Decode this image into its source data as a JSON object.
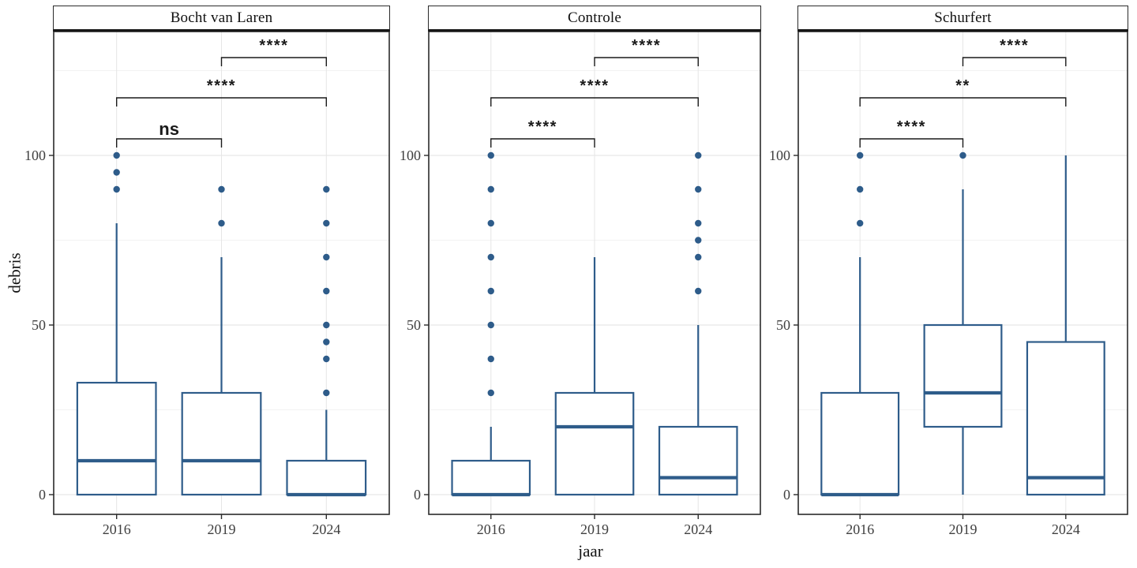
{
  "style": {
    "background": "#ffffff",
    "box_stroke": "#2e5c8a",
    "box_fill": "#ffffff",
    "outlier": "#2e5c8a",
    "grid_major": "#e6e6e6",
    "grid_minor": "#f2f2f2",
    "panel_border": "#2b2b2b",
    "axis_text": "#404040",
    "title_text": "#111111",
    "sig_color": "#1a1a1a"
  },
  "chart_data": {
    "type": "boxplot",
    "faceted": true,
    "title": "",
    "xlabel": "jaar",
    "ylabel": "debris",
    "categories": [
      "2016",
      "2019",
      "2024"
    ],
    "y_ticks": [
      0,
      50,
      100
    ],
    "y_minor_ticks": [
      25,
      75,
      125
    ],
    "ylim": [
      -6,
      136
    ],
    "grid": "major+minor",
    "legend": "none",
    "panels": [
      {
        "title": "Bocht van Laren",
        "boxes": [
          {
            "year": "2016",
            "q1": 0,
            "median": 10,
            "q3": 33,
            "whisker_low": 0,
            "whisker_high": 80,
            "outliers": [
              90,
              95,
              100
            ]
          },
          {
            "year": "2019",
            "q1": 0,
            "median": 10,
            "q3": 30,
            "whisker_low": 0,
            "whisker_high": 70,
            "outliers": [
              80,
              90
            ]
          },
          {
            "year": "2024",
            "q1": 0,
            "median": 0,
            "q3": 10,
            "whisker_low": 0,
            "whisker_high": 25,
            "outliers": [
              30,
              40,
              45,
              50,
              60,
              70,
              80,
              90
            ]
          }
        ],
        "comparisons": [
          {
            "from": "2016",
            "to": "2019",
            "label": "ns",
            "tier": 1
          },
          {
            "from": "2016",
            "to": "2024",
            "label": "****",
            "tier": 2
          },
          {
            "from": "2019",
            "to": "2024",
            "label": "****",
            "tier": 3
          }
        ]
      },
      {
        "title": "Controle",
        "boxes": [
          {
            "year": "2016",
            "q1": 0,
            "median": 0,
            "q3": 10,
            "whisker_low": 0,
            "whisker_high": 20,
            "outliers": [
              30,
              40,
              50,
              60,
              70,
              80,
              90,
              100
            ]
          },
          {
            "year": "2019",
            "q1": 0,
            "median": 20,
            "q3": 30,
            "whisker_low": 0,
            "whisker_high": 70,
            "outliers": []
          },
          {
            "year": "2024",
            "q1": 0,
            "median": 5,
            "q3": 20,
            "whisker_low": 0,
            "whisker_high": 50,
            "outliers": [
              60,
              70,
              75,
              80,
              90,
              100
            ]
          }
        ],
        "comparisons": [
          {
            "from": "2016",
            "to": "2019",
            "label": "****",
            "tier": 1
          },
          {
            "from": "2016",
            "to": "2024",
            "label": "****",
            "tier": 2
          },
          {
            "from": "2019",
            "to": "2024",
            "label": "****",
            "tier": 3
          }
        ]
      },
      {
        "title": "Schurfert",
        "boxes": [
          {
            "year": "2016",
            "q1": 0,
            "median": 0,
            "q3": 30,
            "whisker_low": 0,
            "whisker_high": 70,
            "outliers": [
              80,
              90,
              100
            ]
          },
          {
            "year": "2019",
            "q1": 20,
            "median": 30,
            "q3": 50,
            "whisker_low": 0,
            "whisker_high": 90,
            "outliers": [
              100
            ]
          },
          {
            "year": "2024",
            "q1": 0,
            "median": 5,
            "q3": 45,
            "whisker_low": 0,
            "whisker_high": 100,
            "outliers": []
          }
        ],
        "comparisons": [
          {
            "from": "2016",
            "to": "2019",
            "label": "****",
            "tier": 1
          },
          {
            "from": "2016",
            "to": "2024",
            "label": "**",
            "tier": 2
          },
          {
            "from": "2019",
            "to": "2024",
            "label": "****",
            "tier": 3
          }
        ]
      }
    ]
  }
}
